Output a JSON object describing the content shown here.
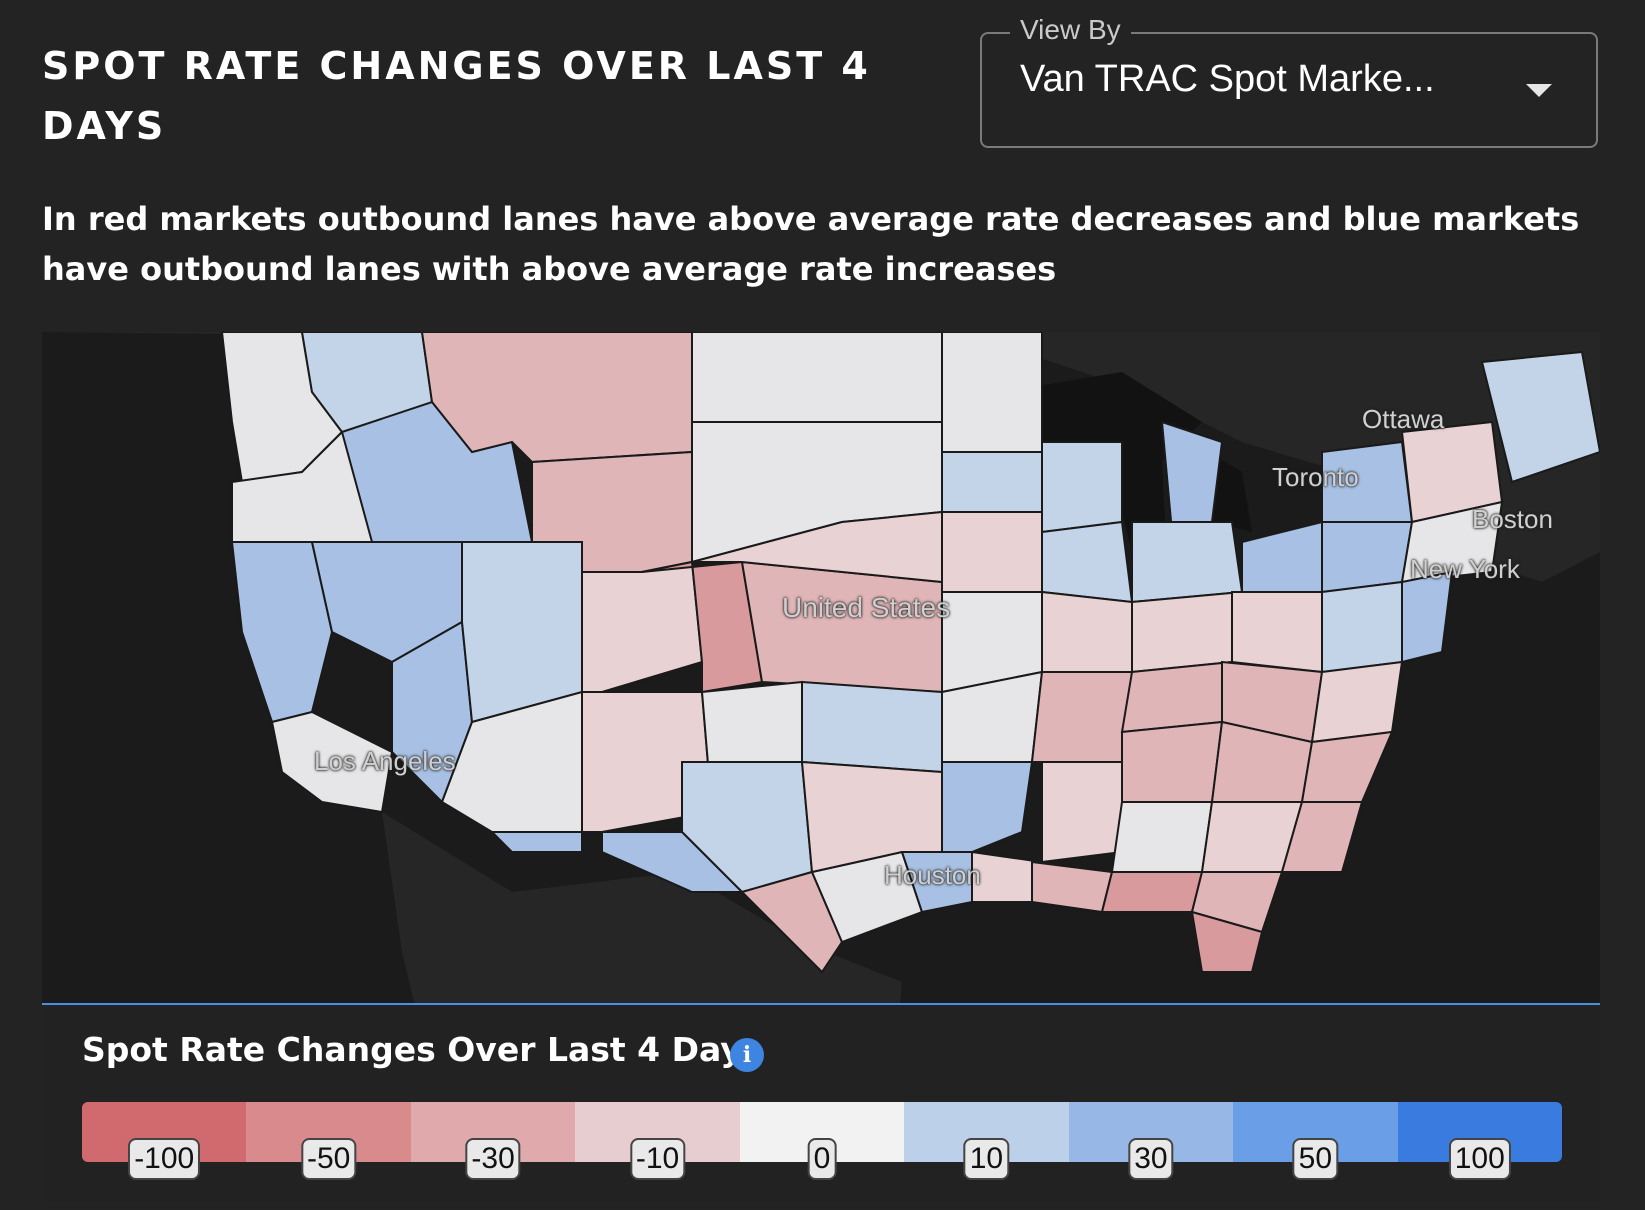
{
  "header": {
    "title": "SPOT RATE CHANGES OVER LAST 4 DAYS",
    "description": "In red markets outbound lanes have above average rate decreases and blue markets have outbound lanes with above average rate increases"
  },
  "view_by": {
    "label": "View By",
    "value": "Van TRAC Spot Marke...",
    "icon": "chevron-down-icon"
  },
  "map": {
    "labels": {
      "ottawa": "Ottawa",
      "toronto": "Toronto",
      "boston": "Boston",
      "new_york": "New York",
      "united_states": "United States",
      "los_angeles": "Los Angeles",
      "houston": "Houston"
    },
    "colors": {
      "background": "#1b1b1b",
      "land": "#2a2a2a",
      "border": "#1a1a1a"
    }
  },
  "legend": {
    "title": "Spot Rate Changes Over Last 4 Days",
    "info_icon": "info-icon",
    "ticks": [
      "-100",
      "-50",
      "-30",
      "-10",
      "0",
      "10",
      "30",
      "50",
      "100"
    ],
    "colors": [
      "#d16a6f",
      "#d88a8c",
      "#e0aaac",
      "#e8cdd0",
      "#f2f2f2",
      "#bdd0ea",
      "#97b8e6",
      "#6a9ee6",
      "#3a7be0"
    ]
  }
}
